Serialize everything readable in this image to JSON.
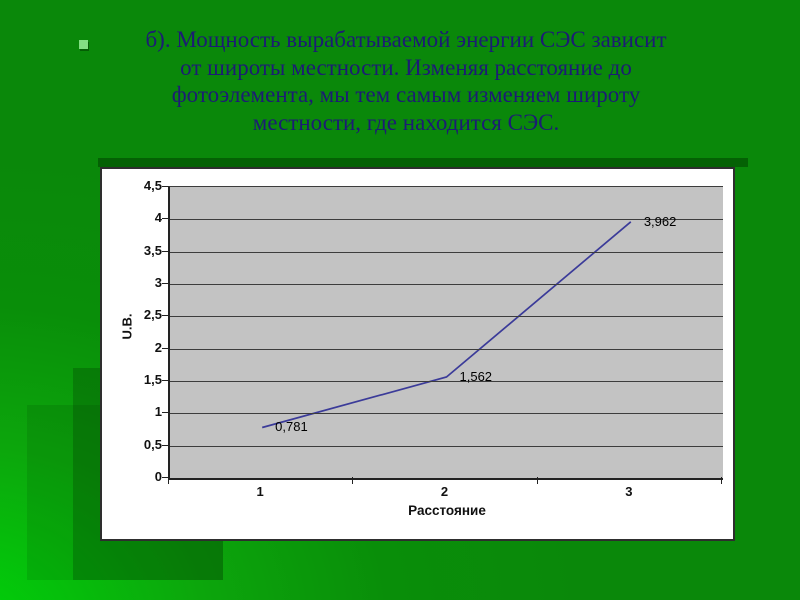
{
  "slide": {
    "title_lines": [
      "б). Мощность вырабатываемой энергии СЭС зависит",
      "от широты местности.  Изменяя расстояние до",
      "фотоэлемента, мы тем самым  изменяем широту",
      "местности, где находится СЭС."
    ]
  },
  "colors": {
    "background_green": "#0a880a",
    "background_bright_green": "#00d20a",
    "title_text": "#1c1c74",
    "bullet_green": "#82df82",
    "chart_box_bg": "#ffffff",
    "plot_bg": "#c3c3c3",
    "gridline": "#3c3c3c",
    "series_line": "#3b3b99",
    "shadow_green": "#046104"
  },
  "chart_data": {
    "type": "line",
    "categories": [
      "1",
      "2",
      "3"
    ],
    "values": [
      0.781,
      1.562,
      3.962
    ],
    "point_labels": [
      "0,781",
      "1,562",
      "3,962"
    ],
    "title": "",
    "xlabel": "Расстояние",
    "ylabel": "U.B.",
    "ylim": [
      0,
      4.5
    ],
    "ytick_step": 0.5,
    "ytick_labels": [
      "4,5",
      "4",
      "3,5",
      "3",
      "2,5",
      "2",
      "1,5",
      "1",
      "0,5",
      "0"
    ],
    "grid": true,
    "legend": false,
    "plot_background": "gray"
  }
}
